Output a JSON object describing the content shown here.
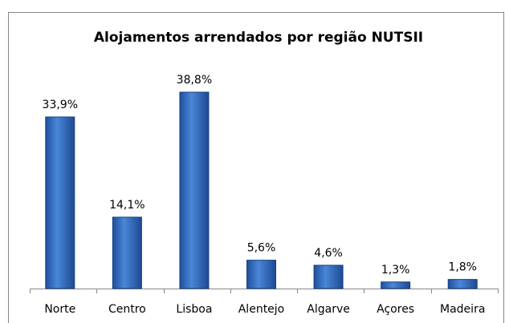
{
  "chart_data": {
    "type": "bar",
    "title": "Alojamentos arrendados por região NUTSII",
    "categories": [
      "Norte",
      "Centro",
      "Lisboa",
      "Alentejo",
      "Algarve",
      "Açores",
      "Madeira"
    ],
    "values": [
      33.9,
      14.1,
      38.8,
      5.6,
      4.6,
      1.3,
      1.8
    ],
    "value_labels": [
      "33,9%",
      "14,1%",
      "38,8%",
      "5,6%",
      "4,6%",
      "1,3%",
      "1,8%"
    ],
    "color": "#3a6fc4"
  }
}
